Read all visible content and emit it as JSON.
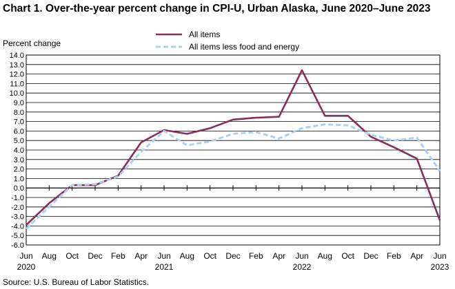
{
  "chart_data": {
    "type": "line",
    "title": "Chart 1. Over-the-year percent change in CPI-U, Urban Alaska,  June 2020–June 2023",
    "ylabel": "Percent change",
    "xlabel": "",
    "ylim": [
      -6.0,
      14.0
    ],
    "ytick_step": 1.0,
    "grid": true,
    "legend_position": "top-center",
    "x": [
      "Jun 2020",
      "Aug 2020",
      "Oct 2020",
      "Dec 2020",
      "Feb 2021",
      "Apr 2021",
      "Jun 2021",
      "Aug 2021",
      "Oct 2021",
      "Dec 2021",
      "Feb 2022",
      "Apr 2022",
      "Jun 2022",
      "Aug 2022",
      "Oct 2022",
      "Dec 2022",
      "Feb 2023",
      "Apr 2023",
      "Jun 2023"
    ],
    "xtick_labels": [
      {
        "month": "Jun",
        "year": "2020"
      },
      {
        "month": "Aug",
        "year": ""
      },
      {
        "month": "Oct",
        "year": ""
      },
      {
        "month": "Dec",
        "year": ""
      },
      {
        "month": "Feb",
        "year": ""
      },
      {
        "month": "Apr",
        "year": ""
      },
      {
        "month": "Jun",
        "year": "2021"
      },
      {
        "month": "Aug",
        "year": ""
      },
      {
        "month": "Oct",
        "year": ""
      },
      {
        "month": "Dec",
        "year": ""
      },
      {
        "month": "Feb",
        "year": ""
      },
      {
        "month": "Apr",
        "year": ""
      },
      {
        "month": "Jun",
        "year": "2022"
      },
      {
        "month": "Aug",
        "year": ""
      },
      {
        "month": "Oct",
        "year": ""
      },
      {
        "month": "Dec",
        "year": ""
      },
      {
        "month": "Feb",
        "year": ""
      },
      {
        "month": "Apr",
        "year": ""
      },
      {
        "month": "Jun",
        "year": "2023"
      }
    ],
    "series": [
      {
        "name": "All items",
        "color": "#8b2c5a",
        "style": "solid",
        "values": [
          -3.9,
          -1.6,
          0.3,
          0.3,
          1.3,
          4.8,
          6.1,
          5.7,
          6.3,
          7.2,
          7.4,
          7.5,
          12.4,
          7.6,
          7.6,
          5.4,
          4.3,
          3.1,
          -3.4
        ]
      },
      {
        "name": "All items less food and energy",
        "color": "#a9d0f5",
        "style": "dashed",
        "values": [
          -4.3,
          -2.0,
          0.3,
          0.4,
          1.2,
          3.8,
          6.0,
          4.5,
          4.9,
          5.7,
          5.9,
          5.2,
          6.3,
          6.7,
          6.6,
          5.6,
          5.0,
          5.3,
          1.8
        ]
      }
    ]
  },
  "source": "Source:  U.S. Bureau  of Labor Statistics."
}
